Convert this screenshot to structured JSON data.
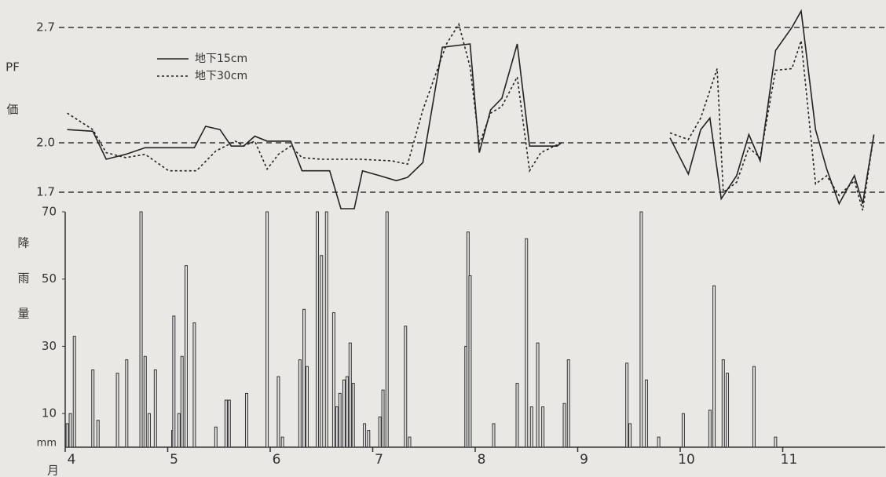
{
  "chart_data": [
    {
      "type": "line",
      "ylabel": [
        "PF",
        "価"
      ],
      "xlim": [
        4,
        12
      ],
      "ylim": [
        1.6,
        2.8
      ],
      "yticks": [
        1.7,
        {
          "value": 2,
          "label": "2.0"
        },
        2.7
      ],
      "grid": true,
      "series": [
        {
          "name": "地下15cm",
          "color": "#222222",
          "dash": false,
          "x": [
            4.02,
            4.27,
            4.4,
            4.59,
            4.78,
            5.26,
            5.37,
            5.51,
            5.62,
            5.74,
            5.85,
            5.97,
            6.2,
            6.31,
            6.58,
            6.69,
            6.82,
            6.9,
            7.07,
            7.23,
            7.34,
            7.49,
            7.68,
            7.95,
            8.04,
            8.15,
            8.26,
            8.41,
            8.53,
            8.8,
            8.84,
            null,
            9.9,
            10.08,
            10.2,
            10.29,
            10.4,
            10.55,
            10.67,
            10.78,
            10.93,
            11.09,
            11.18,
            11.32,
            11.43,
            11.55,
            11.7,
            11.78,
            11.89
          ],
          "values": [
            2.08,
            2.07,
            1.9,
            1.93,
            1.97,
            1.97,
            2.1,
            2.08,
            1.98,
            1.98,
            2.04,
            2.01,
            2.01,
            1.83,
            1.83,
            1.6,
            1.6,
            1.83,
            1.8,
            1.77,
            1.79,
            1.88,
            2.58,
            2.6,
            1.94,
            2.2,
            2.27,
            2.6,
            1.98,
            1.98,
            2.0,
            null,
            2.03,
            1.81,
            2.08,
            2.15,
            1.66,
            1.8,
            2.05,
            1.89,
            2.56,
            2.7,
            2.8,
            2.08,
            1.84,
            1.63,
            1.8,
            1.63,
            2.05
          ]
        },
        {
          "name": "地下30cm",
          "color": "#222222",
          "dash": true,
          "x": [
            4.02,
            4.27,
            4.4,
            4.59,
            4.78,
            5.01,
            5.28,
            5.47,
            5.66,
            5.74,
            5.85,
            5.97,
            6.08,
            6.2,
            6.31,
            6.5,
            6.88,
            7.19,
            7.34,
            7.49,
            7.72,
            7.84,
            7.95,
            8.04,
            8.15,
            8.26,
            8.41,
            8.53,
            8.64,
            8.84,
            null,
            9.9,
            10.08,
            10.2,
            10.36,
            10.42,
            10.55,
            10.67,
            10.78,
            10.93,
            11.09,
            11.18,
            11.32,
            11.43,
            11.55,
            11.7,
            11.78,
            11.89
          ],
          "values": [
            2.18,
            2.08,
            1.94,
            1.91,
            1.93,
            1.83,
            1.83,
            1.95,
            2.01,
            1.98,
            2.01,
            1.84,
            1.93,
            1.98,
            1.91,
            1.9,
            1.9,
            1.89,
            1.87,
            2.2,
            2.6,
            2.72,
            2.46,
            1.99,
            2.18,
            2.22,
            2.4,
            1.83,
            1.94,
            2.0,
            null,
            2.06,
            2.02,
            2.15,
            2.45,
            1.7,
            1.76,
            1.97,
            1.91,
            2.44,
            2.45,
            2.62,
            1.75,
            1.8,
            1.68,
            1.77,
            1.59,
            2.05
          ]
        }
      ]
    },
    {
      "type": "bar",
      "ylabel": [
        "降",
        "雨",
        "量"
      ],
      "yunit": "mm",
      "xlabel": "月",
      "color": "#333333",
      "xlim": [
        4,
        12
      ],
      "ylim": [
        0,
        70
      ],
      "yticks": [
        10,
        30,
        50,
        70
      ],
      "xticks": [
        4,
        5,
        6,
        7,
        8,
        9,
        10,
        11
      ],
      "x": [
        4.02,
        4.05,
        4.09,
        4.27,
        4.32,
        4.51,
        4.6,
        4.74,
        4.78,
        4.82,
        4.88,
        5.05,
        5.06,
        5.11,
        5.14,
        5.18,
        5.26,
        5.47,
        5.57,
        5.6,
        5.77,
        5.97,
        6.08,
        6.12,
        6.29,
        6.33,
        6.36,
        6.46,
        6.5,
        6.55,
        6.62,
        6.65,
        6.68,
        6.72,
        6.75,
        6.78,
        6.81,
        6.92,
        6.96,
        7.07,
        7.1,
        7.14,
        7.32,
        7.36,
        7.91,
        7.93,
        7.95,
        8.18,
        8.41,
        8.5,
        8.55,
        8.61,
        8.66,
        8.87,
        8.91,
        9.48,
        9.51,
        9.62,
        9.67,
        9.79,
        10.03,
        10.29,
        10.33,
        10.42,
        10.46,
        10.72,
        10.93
      ],
      "values": [
        7,
        10,
        33,
        23,
        8,
        22,
        26,
        70,
        27,
        10,
        23,
        5,
        39,
        10,
        27,
        54,
        37,
        6,
        14,
        14,
        16,
        70,
        21,
        3,
        26,
        41,
        24,
        70,
        57,
        70,
        40,
        12,
        16,
        20,
        21,
        31,
        19,
        7,
        5,
        9,
        17,
        70,
        36,
        3,
        30,
        64,
        51,
        7,
        19,
        62,
        12,
        31,
        12,
        13,
        26,
        25,
        7,
        70,
        20,
        3,
        10,
        11,
        48,
        26,
        22,
        24,
        3
      ]
    }
  ]
}
